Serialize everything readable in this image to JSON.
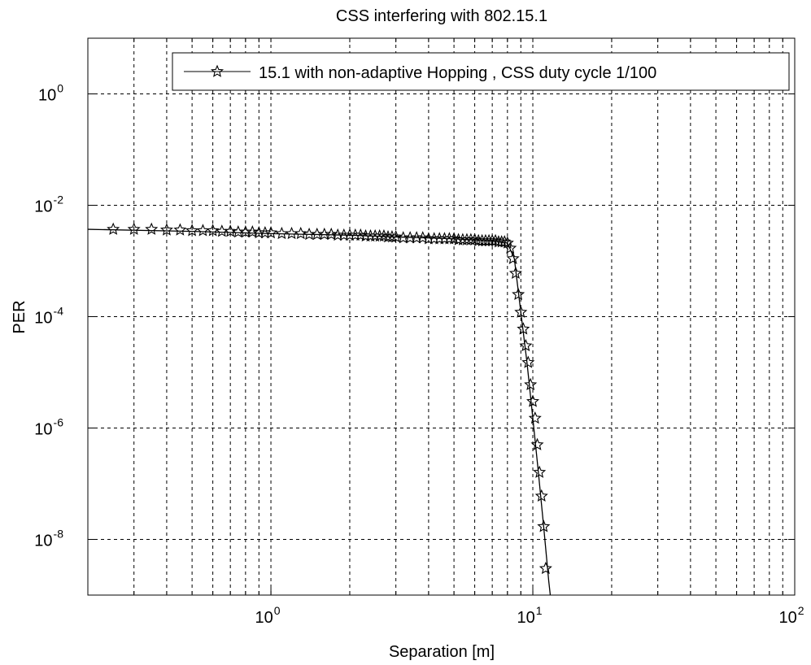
{
  "chart_data": {
    "type": "line",
    "title": "CSS interfering with 802.15.1",
    "xlabel": "Separation [m]",
    "ylabel": "PER",
    "x_scale": "log",
    "y_scale": "log",
    "xlim": [
      0.2,
      100
    ],
    "ylim": [
      1e-09,
      10
    ],
    "x_ticks": [
      {
        "value": 1,
        "base": "10",
        "exp": "0"
      },
      {
        "value": 10,
        "base": "10",
        "exp": "1"
      },
      {
        "value": 100,
        "base": "10",
        "exp": "2"
      }
    ],
    "y_ticks": [
      {
        "value": 1,
        "base": "10",
        "exp": "0"
      },
      {
        "value": 0.01,
        "base": "10",
        "exp": "-2"
      },
      {
        "value": 0.0001,
        "base": "10",
        "exp": "-4"
      },
      {
        "value": 1e-06,
        "base": "10",
        "exp": "-6"
      },
      {
        "value": 1e-08,
        "base": "10",
        "exp": "-8"
      }
    ],
    "grid": true,
    "legend_position": "top-right",
    "series": [
      {
        "name": "15.1 with non-adaptive Hopping , CSS duty cycle 1/100",
        "marker": "star",
        "color": "#000000",
        "line_x": [
          0.2,
          0.5,
          1.0,
          2.0,
          3.0,
          5.0,
          7.0,
          8.0,
          8.5,
          9.0,
          9.5,
          10.0,
          10.5,
          11.0,
          11.5,
          11.8
        ],
        "line_y": [
          0.0037,
          0.0034,
          0.0031,
          0.0029,
          0.0027,
          0.0025,
          0.0023,
          0.0021,
          0.0011,
          0.00012,
          1.5e-05,
          1.5e-06,
          1.6e-07,
          1.7e-08,
          1.8e-09,
          6e-10
        ],
        "marker_x": [
          0.25,
          0.3,
          0.35,
          0.4,
          0.45,
          0.5,
          0.55,
          0.6,
          0.65,
          0.7,
          0.75,
          0.8,
          0.85,
          0.9,
          0.95,
          1.0,
          1.1,
          1.2,
          1.3,
          1.4,
          1.5,
          1.6,
          1.7,
          1.8,
          1.9,
          2.0,
          2.1,
          2.2,
          2.3,
          2.4,
          2.5,
          2.6,
          2.7,
          2.8,
          2.9,
          3.0,
          3.2,
          3.4,
          3.6,
          3.8,
          4.0,
          4.2,
          4.4,
          4.6,
          4.8,
          5.0,
          5.2,
          5.4,
          5.6,
          5.8,
          6.0,
          6.2,
          6.4,
          6.6,
          6.8,
          7.0,
          7.2,
          7.4,
          7.6,
          7.8,
          8.0,
          8.2,
          8.4,
          8.6,
          8.8,
          9.0,
          9.2,
          9.4,
          9.6,
          9.8,
          10.0,
          10.2,
          10.4,
          10.6,
          10.8,
          11.0,
          11.2
        ],
        "marker_y": [
          0.0037,
          0.0037,
          0.0037,
          0.0036,
          0.0036,
          0.0035,
          0.0035,
          0.0035,
          0.0034,
          0.0034,
          0.0033,
          0.0033,
          0.0033,
          0.0032,
          0.0032,
          0.0032,
          0.0031,
          0.0031,
          0.0031,
          0.003,
          0.003,
          0.003,
          0.003,
          0.0029,
          0.0029,
          0.0029,
          0.0029,
          0.0029,
          0.0028,
          0.0028,
          0.0028,
          0.0028,
          0.0028,
          0.0027,
          0.0027,
          0.0027,
          0.0026,
          0.0026,
          0.0026,
          0.0026,
          0.0025,
          0.0025,
          0.0025,
          0.0025,
          0.0025,
          0.0025,
          0.0024,
          0.0024,
          0.0024,
          0.0024,
          0.0024,
          0.0023,
          0.0023,
          0.0023,
          0.0023,
          0.0023,
          0.0023,
          0.0022,
          0.0022,
          0.0022,
          0.0021,
          0.0017,
          0.0011,
          0.0006,
          0.00025,
          0.00012,
          6e-05,
          3e-05,
          1.5e-05,
          6e-06,
          3e-06,
          1.5e-06,
          5e-07,
          1.6e-07,
          6e-08,
          1.7e-08,
          3e-09
        ]
      }
    ]
  }
}
